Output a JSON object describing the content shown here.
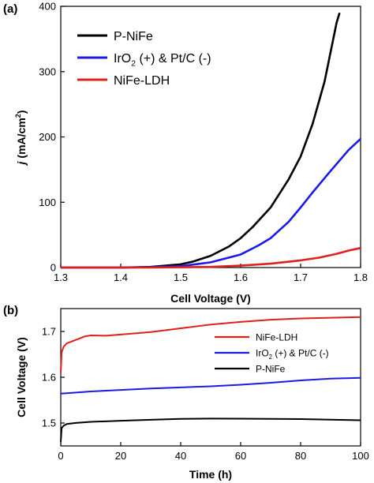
{
  "chart_data": [
    {
      "panel": "(a)",
      "type": "line",
      "xlabel": "Cell Voltage (V)",
      "ylabel": "j (mA/cm2)",
      "xlim": [
        1.3,
        1.8
      ],
      "ylim": [
        0,
        400
      ],
      "xticks": [
        "1.3",
        "1.4",
        "1.5",
        "1.6",
        "1.7",
        "1.8"
      ],
      "yticks": [
        "0",
        "100",
        "200",
        "300",
        "400"
      ],
      "legend_position": "top-left",
      "series": [
        {
          "name": "P-NiFe",
          "color": "#000000",
          "x": [
            1.3,
            1.4,
            1.45,
            1.5,
            1.52,
            1.55,
            1.58,
            1.6,
            1.62,
            1.65,
            1.68,
            1.7,
            1.72,
            1.74,
            1.76,
            1.765
          ],
          "y": [
            0,
            0,
            1,
            5,
            9,
            18,
            32,
            45,
            62,
            92,
            135,
            170,
            220,
            285,
            375,
            390
          ]
        },
        {
          "name": "IrO2 (+) & Pt/C (-)",
          "color": "#1a1ae6",
          "x": [
            1.3,
            1.4,
            1.45,
            1.5,
            1.55,
            1.6,
            1.63,
            1.65,
            1.68,
            1.7,
            1.72,
            1.75,
            1.78,
            1.8
          ],
          "y": [
            0,
            0,
            0.5,
            2,
            8,
            20,
            34,
            45,
            70,
            92,
            115,
            148,
            180,
            197
          ]
        },
        {
          "name": "NiFe-LDH",
          "color": "#e0201a",
          "x": [
            1.3,
            1.45,
            1.55,
            1.6,
            1.65,
            1.7,
            1.73,
            1.76,
            1.78,
            1.8
          ],
          "y": [
            0,
            0,
            1,
            3,
            6,
            11,
            15,
            21,
            26,
            30
          ]
        }
      ]
    },
    {
      "panel": "(b)",
      "type": "line",
      "xlabel": "Time (h)",
      "ylabel": "Cell Voltage (V)",
      "xlim": [
        0,
        100
      ],
      "ylim": [
        1.45,
        1.75
      ],
      "xticks": [
        "0",
        "20",
        "40",
        "60",
        "80",
        "100"
      ],
      "yticks": [
        "1.5",
        "1.6",
        "1.7"
      ],
      "legend_position": "top-right",
      "series": [
        {
          "name": "NiFe-LDH",
          "color": "#e0201a",
          "x": [
            0,
            0.3,
            1,
            2,
            4,
            8,
            10,
            15,
            20,
            30,
            40,
            50,
            60,
            70,
            80,
            90,
            100
          ],
          "y": [
            1.61,
            1.655,
            1.668,
            1.675,
            1.68,
            1.69,
            1.692,
            1.691,
            1.693,
            1.698,
            1.706,
            1.714,
            1.72,
            1.725,
            1.728,
            1.73,
            1.732
          ]
        },
        {
          "name": "IrO2 (+) & Pt/C (-)",
          "color": "#1a1ae6",
          "x": [
            0,
            2,
            10,
            20,
            30,
            40,
            50,
            60,
            70,
            80,
            90,
            100
          ],
          "y": [
            1.565,
            1.566,
            1.57,
            1.573,
            1.576,
            1.578,
            1.58,
            1.583,
            1.587,
            1.592,
            1.596,
            1.598
          ]
        },
        {
          "name": "P-NiFe",
          "color": "#000000",
          "x": [
            0,
            0.3,
            1,
            2,
            5,
            10,
            20,
            30,
            40,
            50,
            60,
            70,
            80,
            90,
            100
          ],
          "y": [
            1.46,
            1.49,
            1.495,
            1.498,
            1.5,
            1.502,
            1.504,
            1.506,
            1.508,
            1.509,
            1.509,
            1.509,
            1.509,
            1.508,
            1.507
          ]
        }
      ]
    }
  ],
  "panel_a": {
    "label": "(a)",
    "ylabel_symbol": "j",
    "ylabel_unit_pre": "(mA/cm",
    "ylabel_unit_sup": "2",
    "ylabel_unit_post": ")",
    "legend": [
      {
        "pre": "P-NiFe",
        "sub": "",
        "post": ""
      },
      {
        "pre": "IrO",
        "sub": "2",
        "post": " (+) & Pt/C (-)"
      },
      {
        "pre": "NiFe-LDH",
        "sub": "",
        "post": ""
      }
    ]
  },
  "panel_b": {
    "label": "(b)",
    "legend": [
      {
        "pre": "NiFe-LDH",
        "sub": "",
        "post": ""
      },
      {
        "pre": "IrO",
        "sub": "2",
        "post": " (+) & Pt/C (-)"
      },
      {
        "pre": "P-NiFe",
        "sub": "",
        "post": ""
      }
    ]
  }
}
